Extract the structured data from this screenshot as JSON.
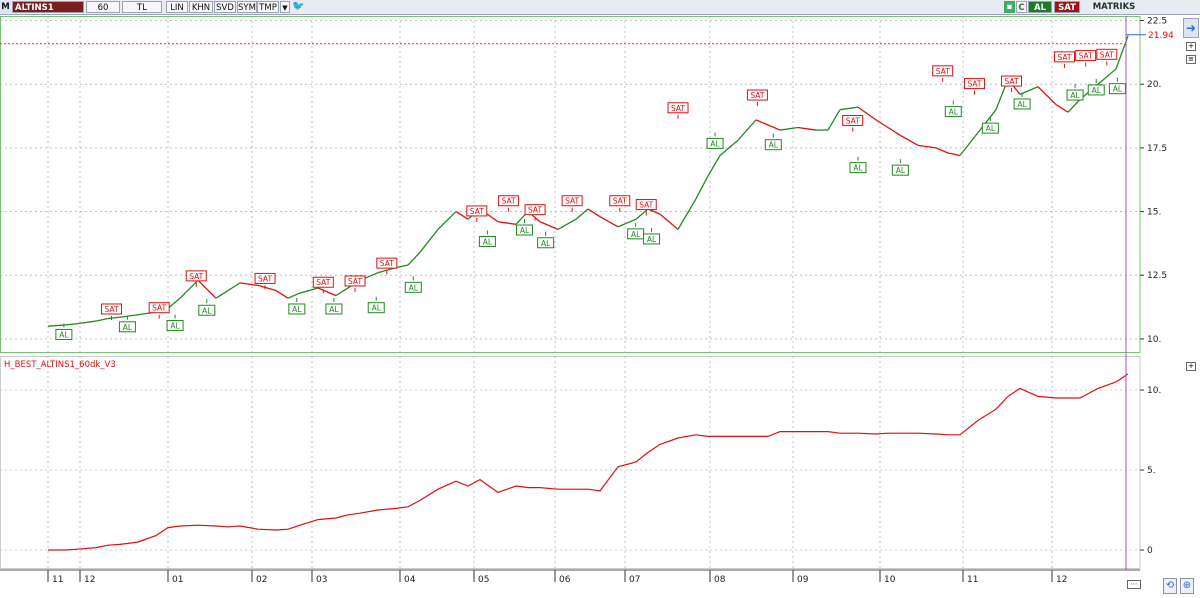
{
  "toolbar": {
    "logo": "M",
    "symbol": "ALTINS1",
    "period": "60",
    "currency": "TL",
    "lin": "LIN",
    "khn": "KHN",
    "svd": "SVD",
    "sym": "SYM",
    "tmp": "TMP",
    "c_label": "C",
    "al_label": "AL",
    "sat_label": "SAT",
    "matriks_label": "MATRIKS"
  },
  "colors": {
    "buy": "#1f8a1f",
    "sell": "#e01010",
    "equity": "#e01010",
    "grid": "#9a9a9a",
    "panel_border": "#72c772",
    "cursor_line": "#a050c8",
    "price_line_dash": "#b04a2a"
  },
  "icons": {
    "bird": "twitter-bird-icon",
    "arrow": "back-arrow-icon",
    "refresh": "refresh-icon",
    "zoom": "zoom-icon"
  },
  "chart_data": [
    {
      "type": "line",
      "title": "",
      "last_price_label": "21.94",
      "y_ticks": [
        "22.5",
        "20.",
        "17.5",
        "15.",
        "12.5",
        "10."
      ],
      "ylim": [
        9.8,
        22.6
      ],
      "x_ticks": [
        "11",
        "12",
        "01",
        "02",
        "03",
        "04",
        "05",
        "06",
        "07",
        "08",
        "09",
        "10",
        "11",
        "12"
      ],
      "series": [
        {
          "x": [
            0,
            3,
            5,
            8,
            10,
            12,
            15,
            18,
            20,
            22,
            25,
            28,
            30,
            32,
            35,
            38,
            40,
            42,
            45,
            48,
            50,
            52,
            55,
            58,
            60,
            62,
            65,
            68,
            70,
            72,
            75,
            78,
            80,
            82,
            85,
            88,
            90,
            92,
            95,
            98,
            100,
            102,
            105,
            108,
            110,
            112,
            115,
            118,
            120,
            122,
            125,
            128,
            130,
            132,
            135,
            138,
            140,
            142,
            145,
            148,
            150,
            152,
            155,
            158,
            160,
            162,
            165,
            168,
            170,
            172,
            175,
            178,
            180
          ],
          "values": [
            10.5,
            10.55,
            10.6,
            10.7,
            10.8,
            10.85,
            10.95,
            11.05,
            11.2,
            11.6,
            12.3,
            11.6,
            11.9,
            12.2,
            12.1,
            11.9,
            11.6,
            11.8,
            12.0,
            11.7,
            12.0,
            12.3,
            12.6,
            12.8,
            12.9,
            13.4,
            14.3,
            15.0,
            14.7,
            15.1,
            14.6,
            14.5,
            15.0,
            14.6,
            14.3,
            14.7,
            15.1,
            14.8,
            14.4,
            14.7,
            15.1,
            14.9,
            14.3,
            15.5,
            16.4,
            17.2,
            17.8,
            18.6,
            18.4,
            18.2,
            18.3,
            18.2,
            18.2,
            19.0,
            19.1,
            18.6,
            18.3,
            18.0,
            17.6,
            17.5,
            17.3,
            17.2,
            18.1,
            19.0,
            20.2,
            19.6,
            19.9,
            19.2,
            18.9,
            19.4,
            20.0,
            20.6,
            21.9
          ],
          "name": ""
        }
      ],
      "signals": [
        {
          "type": "AL",
          "x": 3,
          "y": 10.45
        },
        {
          "type": "SAT",
          "x": 12,
          "y": 10.9
        },
        {
          "type": "AL",
          "x": 15,
          "y": 10.75
        },
        {
          "type": "SAT",
          "x": 21,
          "y": 10.95
        },
        {
          "type": "AL",
          "x": 24,
          "y": 10.8
        },
        {
          "type": "SAT",
          "x": 28,
          "y": 12.2
        },
        {
          "type": "AL",
          "x": 30,
          "y": 11.4
        },
        {
          "type": "SAT",
          "x": 41,
          "y": 12.1
        },
        {
          "type": "AL",
          "x": 47,
          "y": 11.45
        },
        {
          "type": "SAT",
          "x": 52,
          "y": 11.95
        },
        {
          "type": "AL",
          "x": 54,
          "y": 11.45
        },
        {
          "type": "SAT",
          "x": 58,
          "y": 12.0
        },
        {
          "type": "AL",
          "x": 62,
          "y": 11.5
        },
        {
          "type": "SAT",
          "x": 64,
          "y": 12.7
        },
        {
          "type": "AL",
          "x": 69,
          "y": 12.3
        },
        {
          "type": "SAT",
          "x": 81,
          "y": 14.75
        },
        {
          "type": "AL",
          "x": 83,
          "y": 14.1
        },
        {
          "type": "SAT",
          "x": 87,
          "y": 15.15
        },
        {
          "type": "AL",
          "x": 90,
          "y": 14.55
        },
        {
          "type": "SAT",
          "x": 92,
          "y": 14.8
        },
        {
          "type": "AL",
          "x": 94,
          "y": 14.05
        },
        {
          "type": "SAT",
          "x": 99,
          "y": 15.15
        },
        {
          "type": "SAT",
          "x": 108,
          "y": 15.15
        },
        {
          "type": "AL",
          "x": 111,
          "y": 14.4
        },
        {
          "type": "SAT",
          "x": 113,
          "y": 15.0
        },
        {
          "type": "AL",
          "x": 114,
          "y": 14.2
        },
        {
          "type": "SAT",
          "x": 119,
          "y": 18.8
        },
        {
          "type": "AL",
          "x": 126,
          "y": 17.95
        },
        {
          "type": "SAT",
          "x": 134,
          "y": 19.3
        },
        {
          "type": "AL",
          "x": 137,
          "y": 17.9
        },
        {
          "type": "SAT",
          "x": 152,
          "y": 18.3
        },
        {
          "type": "AL",
          "x": 153,
          "y": 17.0
        },
        {
          "type": "AL",
          "x": 161,
          "y": 16.9
        },
        {
          "type": "SAT",
          "x": 169,
          "y": 20.25
        },
        {
          "type": "AL",
          "x": 171,
          "y": 19.2
        },
        {
          "type": "SAT",
          "x": 175,
          "y": 19.75
        },
        {
          "type": "AL",
          "x": 178,
          "y": 18.55
        },
        {
          "type": "SAT",
          "x": 182,
          "y": 19.85
        },
        {
          "type": "AL",
          "x": 184,
          "y": 19.5
        },
        {
          "type": "SAT",
          "x": 192,
          "y": 20.8
        },
        {
          "type": "AL",
          "x": 194,
          "y": 19.85
        },
        {
          "type": "SAT",
          "x": 196,
          "y": 20.85
        },
        {
          "type": "AL",
          "x": 198,
          "y": 20.05
        },
        {
          "type": "SAT",
          "x": 200,
          "y": 20.9
        },
        {
          "type": "AL",
          "x": 202,
          "y": 20.1
        }
      ],
      "grid": true
    },
    {
      "type": "line",
      "title": "H_BEST_ALTINS1_60dk_V3",
      "y_ticks": [
        "10.",
        "5.",
        "0"
      ],
      "ylim": [
        -0.5,
        11.5
      ],
      "series": [
        {
          "name": "",
          "x": [
            0,
            3,
            5,
            8,
            10,
            12,
            15,
            18,
            20,
            22,
            25,
            28,
            30,
            32,
            35,
            38,
            40,
            42,
            45,
            48,
            50,
            52,
            55,
            58,
            60,
            62,
            65,
            68,
            70,
            72,
            75,
            78,
            80,
            82,
            85,
            88,
            90,
            92,
            95,
            98,
            100,
            102,
            105,
            108,
            110,
            112,
            115,
            118,
            120,
            122,
            125,
            128,
            130,
            132,
            135,
            138,
            140,
            142,
            145,
            148,
            150,
            152,
            155,
            158,
            160,
            162,
            165,
            168,
            170,
            172,
            175,
            178,
            180
          ],
          "values": [
            0,
            0,
            0.05,
            0.15,
            0.3,
            0.35,
            0.5,
            0.9,
            1.4,
            1.5,
            1.55,
            1.5,
            1.45,
            1.5,
            1.3,
            1.25,
            1.3,
            1.55,
            1.9,
            2.0,
            2.2,
            2.3,
            2.5,
            2.6,
            2.7,
            3.1,
            3.8,
            4.3,
            4.0,
            4.4,
            3.6,
            4.0,
            3.9,
            3.9,
            3.8,
            3.8,
            3.8,
            3.7,
            5.2,
            5.5,
            6.1,
            6.6,
            7.0,
            7.2,
            7.1,
            7.1,
            7.1,
            7.1,
            7.1,
            7.4,
            7.4,
            7.4,
            7.4,
            7.3,
            7.3,
            7.25,
            7.3,
            7.3,
            7.3,
            7.25,
            7.2,
            7.2,
            8.1,
            8.8,
            9.6,
            10.1,
            9.6,
            9.5,
            9.5,
            9.5,
            10.1,
            10.5,
            11.0
          ]
        }
      ],
      "grid": true
    }
  ]
}
